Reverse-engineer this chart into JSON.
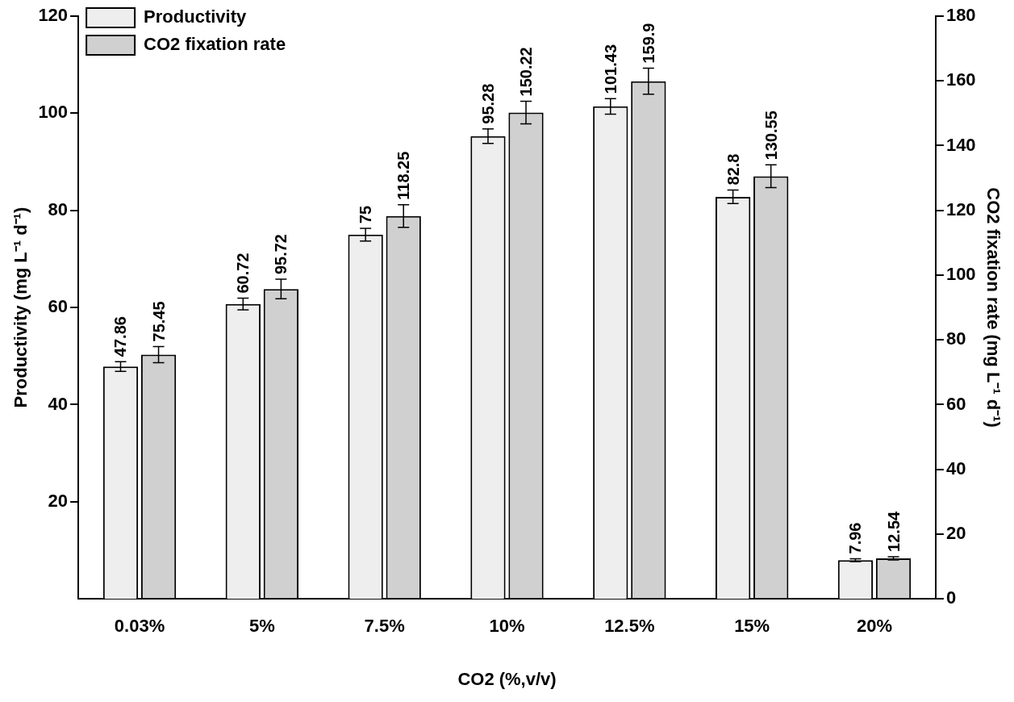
{
  "chart_data": {
    "type": "bar",
    "xlabel": "CO2 (%,v/v)",
    "ylabel": "Productivity (mg L⁻¹ d⁻¹)",
    "y2label": "CO2 fixation rate (mg L⁻¹ d⁻¹)",
    "categories": [
      "0.03%",
      "5%",
      "7.5%",
      "10%",
      "12.5%",
      "15%",
      "20%"
    ],
    "series": [
      {
        "name": "Productivity",
        "color": "#eeeeee",
        "values": [
          47.86,
          60.72,
          75,
          95.28,
          101.43,
          82.8,
          7.96
        ],
        "errors": [
          1,
          1.2,
          1.3,
          1.5,
          1.6,
          1.4,
          0.3
        ]
      },
      {
        "name": "CO2 fixation rate",
        "color": "#d0d0d0",
        "axis": "y2",
        "values": [
          75.45,
          95.72,
          118.25,
          150.22,
          159.9,
          130.55,
          12.54
        ],
        "errors": [
          2.5,
          3,
          3.5,
          3.5,
          4,
          3.5,
          0.5
        ]
      }
    ],
    "ylim": [
      0,
      120
    ],
    "yticks": [
      20,
      40,
      60,
      80,
      100,
      120
    ],
    "y2lim": [
      0,
      180
    ],
    "y2ticks": [
      0,
      20,
      40,
      60,
      80,
      100,
      120,
      140,
      160,
      180
    ],
    "data_labels": true,
    "legend": "top left",
    "grid": false
  }
}
